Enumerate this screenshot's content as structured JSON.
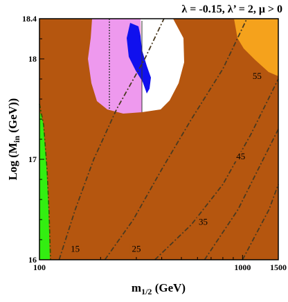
{
  "chart_data": {
    "type": "contour",
    "title": "λ = -0.15, λ’ = 2,  μ > 0",
    "xlabel_main": "m",
    "xlabel_sub": "1/2",
    "xlabel_unit": " (GeV)",
    "ylabel_main": "Log (M",
    "ylabel_sub": "in",
    "ylabel_unit": " (GeV))",
    "xlim": [
      100,
      1500
    ],
    "ylim": [
      16,
      18.4
    ],
    "x_scale": "log",
    "x_ticks": [
      {
        "value": 100,
        "label": "100"
      },
      {
        "value": 1000,
        "label": "1000"
      },
      {
        "value": 1500,
        "label": "1500"
      }
    ],
    "y_ticks": [
      {
        "value": 16,
        "label": "16"
      },
      {
        "value": 17,
        "label": "17"
      },
      {
        "value": 18,
        "label": "18"
      },
      {
        "value": 18.4,
        "label": "18.4"
      }
    ],
    "contours": [
      {
        "level": "15",
        "points": [
          [
            125,
            16.0
          ],
          [
            150,
            16.5
          ],
          [
            185,
            17.0
          ],
          [
            240,
            17.5
          ],
          [
            330,
            18.0
          ],
          [
            410,
            18.4
          ]
        ]
      },
      {
        "level": "25",
        "points": [
          [
            210,
            16.0
          ],
          [
            290,
            16.4
          ],
          [
            400,
            16.9
          ],
          [
            560,
            17.4
          ],
          [
            800,
            17.9
          ],
          [
            1050,
            18.4
          ]
        ]
      },
      {
        "level": "35",
        "points": [
          [
            370,
            16.0
          ],
          [
            560,
            16.35
          ],
          [
            800,
            16.75
          ],
          [
            1100,
            17.25
          ],
          [
            1500,
            17.8
          ]
        ]
      },
      {
        "level": "45",
        "points": [
          [
            650,
            16.0
          ],
          [
            950,
            16.5
          ],
          [
            1300,
            17.05
          ],
          [
            1500,
            17.3
          ]
        ]
      },
      {
        "level": "55",
        "points": [
          [
            1000,
            16.0
          ],
          [
            1350,
            16.5
          ],
          [
            1500,
            16.75
          ]
        ]
      }
    ],
    "contour_labels": [
      {
        "text": "15",
        "x": 150,
        "y": 16.08
      },
      {
        "text": "25",
        "x": 300,
        "y": 16.08
      },
      {
        "text": "35",
        "x": 640,
        "y": 16.35
      },
      {
        "text": "45",
        "x": 980,
        "y": 17.0
      },
      {
        "text": "55",
        "x": 1180,
        "y": 17.8
      }
    ],
    "regions": [
      {
        "color": "#b5560f",
        "meaning": "background"
      },
      {
        "color": "#ee99ee",
        "meaning": "pink region"
      },
      {
        "color": "#ffffff",
        "meaning": "white region"
      },
      {
        "color": "#1010ee",
        "meaning": "blue region"
      },
      {
        "color": "#f5a21c",
        "meaning": "orange region"
      },
      {
        "color": "#33ee11",
        "meaning": "green strip"
      }
    ]
  }
}
